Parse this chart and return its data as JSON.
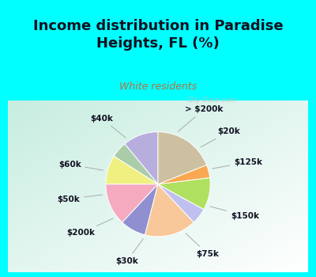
{
  "title": "Income distribution in Paradise\nHeights, FL (%)",
  "subtitle": "White residents",
  "title_color": "#111122",
  "subtitle_color": "#b87040",
  "bg_cyan": "#00ffff",
  "watermark": "City-Data.com",
  "start_angle": 90,
  "labels": [
    "> $200k",
    "$20k",
    "$125k",
    "$150k",
    "$75k",
    "$30k",
    "$200k",
    "$50k",
    "$60k",
    "$40k"
  ],
  "values": [
    11,
    5,
    9,
    13,
    8,
    16,
    5,
    10,
    4,
    19
  ],
  "colors": [
    "#b8aedd",
    "#aacca8",
    "#f0f080",
    "#f5aac0",
    "#9090d0",
    "#f8c89a",
    "#c0c0f0",
    "#b0e060",
    "#f8a850",
    "#ccc0a0"
  ],
  "label_fontsize": 7.5,
  "label_color": "#111122",
  "line_color": "#aaaaaa"
}
